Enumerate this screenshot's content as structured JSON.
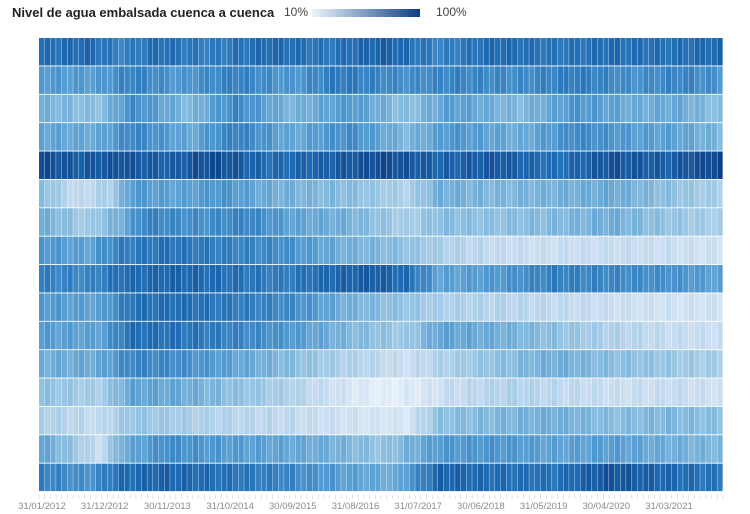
{
  "chart_data": {
    "type": "heatmap",
    "title": "Nivel de agua embalsada cuenca a cuenca",
    "legend": {
      "min_label": "10%",
      "max_label": "100%",
      "color_low": "#eef4fb",
      "color_high": "#0b3f86"
    },
    "x_tick_labels": [
      "31/01/2012",
      "31/12/2012",
      "30/11/2013",
      "31/10/2014",
      "30/09/2015",
      "31/08/2016",
      "31/07/2017",
      "30/06/2018",
      "31/05/2019",
      "30/04/2020",
      "31/03/2021"
    ],
    "first_month": "2012-01",
    "n_months": 120,
    "row_keyframes": [
      [
        [
          0,
          0.78
        ],
        [
          8,
          0.82
        ],
        [
          14,
          0.7
        ],
        [
          20,
          0.8
        ],
        [
          30,
          0.72
        ],
        [
          40,
          0.82
        ],
        [
          50,
          0.75
        ],
        [
          60,
          0.86
        ],
        [
          70,
          0.7
        ],
        [
          80,
          0.82
        ],
        [
          90,
          0.76
        ],
        [
          100,
          0.8
        ],
        [
          110,
          0.78
        ],
        [
          119,
          0.82
        ]
      ],
      [
        [
          0,
          0.6
        ],
        [
          10,
          0.58
        ],
        [
          16,
          0.72
        ],
        [
          24,
          0.6
        ],
        [
          34,
          0.72
        ],
        [
          44,
          0.6
        ],
        [
          52,
          0.75
        ],
        [
          64,
          0.65
        ],
        [
          72,
          0.7
        ],
        [
          84,
          0.66
        ],
        [
          94,
          0.74
        ],
        [
          104,
          0.64
        ],
        [
          112,
          0.7
        ],
        [
          119,
          0.62
        ]
      ],
      [
        [
          0,
          0.48
        ],
        [
          10,
          0.4
        ],
        [
          16,
          0.66
        ],
        [
          26,
          0.44
        ],
        [
          34,
          0.68
        ],
        [
          44,
          0.46
        ],
        [
          54,
          0.6
        ],
        [
          64,
          0.4
        ],
        [
          72,
          0.58
        ],
        [
          84,
          0.44
        ],
        [
          94,
          0.62
        ],
        [
          104,
          0.5
        ],
        [
          112,
          0.52
        ],
        [
          119,
          0.4
        ]
      ],
      [
        [
          0,
          0.55
        ],
        [
          10,
          0.52
        ],
        [
          16,
          0.7
        ],
        [
          26,
          0.52
        ],
        [
          34,
          0.72
        ],
        [
          44,
          0.52
        ],
        [
          54,
          0.66
        ],
        [
          64,
          0.45
        ],
        [
          72,
          0.62
        ],
        [
          84,
          0.5
        ],
        [
          94,
          0.68
        ],
        [
          104,
          0.58
        ],
        [
          112,
          0.55
        ],
        [
          119,
          0.45
        ]
      ],
      [
        [
          0,
          0.95
        ],
        [
          6,
          0.88
        ],
        [
          14,
          0.92
        ],
        [
          22,
          0.85
        ],
        [
          30,
          0.95
        ],
        [
          40,
          0.8
        ],
        [
          50,
          0.86
        ],
        [
          60,
          0.95
        ],
        [
          70,
          0.84
        ],
        [
          80,
          0.9
        ],
        [
          90,
          0.78
        ],
        [
          100,
          0.92
        ],
        [
          110,
          0.86
        ],
        [
          119,
          0.98
        ]
      ],
      [
        [
          0,
          0.42
        ],
        [
          6,
          0.2
        ],
        [
          12,
          0.3
        ],
        [
          16,
          0.6
        ],
        [
          24,
          0.55
        ],
        [
          32,
          0.62
        ],
        [
          40,
          0.5
        ],
        [
          54,
          0.42
        ],
        [
          64,
          0.28
        ],
        [
          70,
          0.5
        ],
        [
          80,
          0.45
        ],
        [
          90,
          0.48
        ],
        [
          100,
          0.52
        ],
        [
          110,
          0.4
        ],
        [
          119,
          0.3
        ]
      ],
      [
        [
          0,
          0.5
        ],
        [
          8,
          0.32
        ],
        [
          14,
          0.5
        ],
        [
          18,
          0.7
        ],
        [
          28,
          0.64
        ],
        [
          36,
          0.7
        ],
        [
          44,
          0.55
        ],
        [
          54,
          0.48
        ],
        [
          64,
          0.3
        ],
        [
          70,
          0.42
        ],
        [
          80,
          0.4
        ],
        [
          90,
          0.44
        ],
        [
          100,
          0.5
        ],
        [
          110,
          0.38
        ],
        [
          119,
          0.3
        ]
      ],
      [
        [
          0,
          0.62
        ],
        [
          8,
          0.55
        ],
        [
          14,
          0.72
        ],
        [
          22,
          0.78
        ],
        [
          32,
          0.72
        ],
        [
          42,
          0.66
        ],
        [
          52,
          0.5
        ],
        [
          62,
          0.42
        ],
        [
          70,
          0.3
        ],
        [
          80,
          0.2
        ],
        [
          90,
          0.18
        ],
        [
          100,
          0.2
        ],
        [
          110,
          0.18
        ],
        [
          119,
          0.15
        ]
      ],
      [
        [
          0,
          0.72
        ],
        [
          8,
          0.68
        ],
        [
          14,
          0.8
        ],
        [
          24,
          0.84
        ],
        [
          34,
          0.78
        ],
        [
          42,
          0.72
        ],
        [
          50,
          0.82
        ],
        [
          58,
          0.88
        ],
        [
          64,
          0.8
        ],
        [
          70,
          0.55
        ],
        [
          80,
          0.6
        ],
        [
          90,
          0.72
        ],
        [
          100,
          0.68
        ],
        [
          110,
          0.64
        ],
        [
          119,
          0.55
        ]
      ],
      [
        [
          0,
          0.6
        ],
        [
          10,
          0.55
        ],
        [
          16,
          0.78
        ],
        [
          24,
          0.8
        ],
        [
          34,
          0.74
        ],
        [
          44,
          0.66
        ],
        [
          54,
          0.48
        ],
        [
          64,
          0.38
        ],
        [
          70,
          0.3
        ],
        [
          80,
          0.26
        ],
        [
          90,
          0.22
        ],
        [
          100,
          0.18
        ],
        [
          110,
          0.15
        ],
        [
          119,
          0.15
        ]
      ],
      [
        [
          0,
          0.58
        ],
        [
          10,
          0.55
        ],
        [
          16,
          0.8
        ],
        [
          24,
          0.78
        ],
        [
          34,
          0.7
        ],
        [
          44,
          0.6
        ],
        [
          54,
          0.45
        ],
        [
          64,
          0.34
        ],
        [
          70,
          0.55
        ],
        [
          80,
          0.5
        ],
        [
          90,
          0.4
        ],
        [
          100,
          0.28
        ],
        [
          110,
          0.2
        ],
        [
          119,
          0.18
        ]
      ],
      [
        [
          0,
          0.5
        ],
        [
          10,
          0.52
        ],
        [
          16,
          0.7
        ],
        [
          24,
          0.66
        ],
        [
          34,
          0.55
        ],
        [
          44,
          0.42
        ],
        [
          54,
          0.28
        ],
        [
          64,
          0.18
        ],
        [
          70,
          0.28
        ],
        [
          80,
          0.4
        ],
        [
          90,
          0.5
        ],
        [
          100,
          0.42
        ],
        [
          110,
          0.36
        ],
        [
          119,
          0.3
        ]
      ],
      [
        [
          0,
          0.4
        ],
        [
          10,
          0.3
        ],
        [
          16,
          0.55
        ],
        [
          24,
          0.52
        ],
        [
          34,
          0.4
        ],
        [
          44,
          0.28
        ],
        [
          54,
          0.12
        ],
        [
          60,
          0.05
        ],
        [
          66,
          0.1
        ],
        [
          72,
          0.2
        ],
        [
          82,
          0.28
        ],
        [
          92,
          0.22
        ],
        [
          102,
          0.18
        ],
        [
          112,
          0.2
        ],
        [
          119,
          0.15
        ]
      ],
      [
        [
          0,
          0.3
        ],
        [
          10,
          0.2
        ],
        [
          16,
          0.38
        ],
        [
          24,
          0.32
        ],
        [
          34,
          0.25
        ],
        [
          44,
          0.22
        ],
        [
          54,
          0.15
        ],
        [
          64,
          0.12
        ],
        [
          70,
          0.4
        ],
        [
          80,
          0.45
        ],
        [
          90,
          0.5
        ],
        [
          100,
          0.42
        ],
        [
          110,
          0.45
        ],
        [
          119,
          0.4
        ]
      ],
      [
        [
          0,
          0.55
        ],
        [
          6,
          0.35
        ],
        [
          10,
          0.18
        ],
        [
          14,
          0.5
        ],
        [
          22,
          0.66
        ],
        [
          30,
          0.6
        ],
        [
          40,
          0.55
        ],
        [
          50,
          0.5
        ],
        [
          60,
          0.38
        ],
        [
          70,
          0.6
        ],
        [
          80,
          0.62
        ],
        [
          90,
          0.55
        ],
        [
          100,
          0.58
        ],
        [
          110,
          0.5
        ],
        [
          119,
          0.45
        ]
      ],
      [
        [
          0,
          0.72
        ],
        [
          8,
          0.62
        ],
        [
          14,
          0.8
        ],
        [
          22,
          0.85
        ],
        [
          32,
          0.78
        ],
        [
          42,
          0.7
        ],
        [
          52,
          0.58
        ],
        [
          62,
          0.5
        ],
        [
          70,
          0.85
        ],
        [
          80,
          0.8
        ],
        [
          90,
          0.78
        ],
        [
          100,
          0.92
        ],
        [
          110,
          0.82
        ],
        [
          119,
          0.75
        ]
      ]
    ]
  }
}
